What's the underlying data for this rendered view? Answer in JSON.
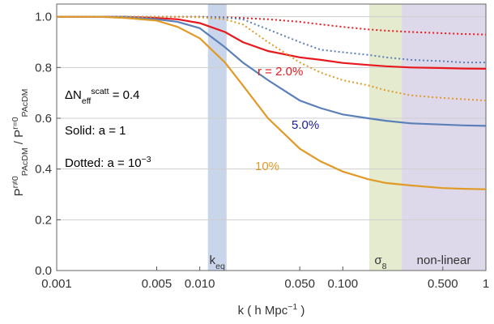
{
  "chart_data": {
    "type": "line",
    "x_scale": "log",
    "grid": true,
    "x_label": [
      {
        "text": "k ( h Mpc"
      },
      {
        "text": "−1",
        "shift": "super"
      },
      {
        "text": " )"
      }
    ],
    "y_label": [
      {
        "text": "P"
      },
      {
        "text": "r≠0",
        "shift": "super"
      },
      {
        "text": "PAcDM",
        "shift": "sub"
      },
      {
        "text": "  /  P"
      },
      {
        "text": "r=0",
        "shift": "super"
      },
      {
        "text": "PAcDM",
        "shift": "sub"
      }
    ],
    "xlim": [
      0.001,
      1
    ],
    "ylim": [
      0,
      1.05
    ],
    "xticks": [
      0.001,
      0.005,
      {
        "value": 0.01,
        "label": "0.010"
      },
      {
        "value": 0.05,
        "label": "0.050"
      },
      {
        "value": 0.1,
        "label": "0.100"
      },
      {
        "value": 0.5,
        "label": "0.500"
      },
      1
    ],
    "yticks": [
      {
        "value": 0,
        "label": "0.0"
      },
      0.2,
      0.4,
      0.6,
      0.8,
      {
        "value": 1,
        "label": "1.0"
      }
    ],
    "bands": [
      {
        "xlim": [
          0.0114,
          0.0154
        ],
        "color": "#c9d5ea",
        "label": [
          {
            "text": "k"
          },
          {
            "text": "eq",
            "shift": "sub"
          }
        ]
      },
      {
        "xlim": [
          0.153,
          0.258
        ],
        "color": "#e4ebcf",
        "label": [
          {
            "text": "σ"
          },
          {
            "text": "8",
            "shift": "sub"
          }
        ]
      },
      {
        "xlim": [
          0.258,
          1
        ],
        "color": "#ded9ea",
        "label": [
          {
            "text": "non-linear"
          }
        ]
      }
    ],
    "x": [
      0.001,
      0.002,
      0.003,
      0.005,
      0.007,
      0.01,
      0.015,
      0.02,
      0.03,
      0.05,
      0.07,
      0.1,
      0.15,
      0.2,
      0.3,
      0.5,
      0.7,
      1
    ],
    "series": [
      {
        "color": "#e8191e",
        "dashed": false,
        "values": [
          1,
          1,
          1,
          0.995,
          0.99,
          0.975,
          0.94,
          0.9,
          0.865,
          0.84,
          0.83,
          0.818,
          0.81,
          0.805,
          0.8,
          0.798,
          0.796,
          0.795
        ]
      },
      {
        "color": "#5b80b8",
        "dashed": false,
        "values": [
          1,
          1,
          1,
          0.99,
          0.98,
          0.955,
          0.88,
          0.82,
          0.75,
          0.67,
          0.64,
          0.615,
          0.6,
          0.59,
          0.58,
          0.575,
          0.572,
          0.57
        ]
      },
      {
        "color": "#e09a26",
        "dashed": false,
        "values": [
          1,
          1,
          0.995,
          0.985,
          0.96,
          0.915,
          0.82,
          0.73,
          0.6,
          0.48,
          0.43,
          0.39,
          0.36,
          0.345,
          0.335,
          0.325,
          0.322,
          0.32
        ]
      },
      {
        "color": "#e8191e",
        "dashed": true,
        "values": [
          1,
          1,
          1,
          1,
          1,
          1,
          0.998,
          0.995,
          0.99,
          0.98,
          0.97,
          0.96,
          0.95,
          0.945,
          0.94,
          0.935,
          0.932,
          0.93
        ]
      },
      {
        "color": "#5b80b8",
        "dashed": true,
        "values": [
          1,
          1,
          1,
          1,
          1,
          1,
          0.997,
          0.99,
          0.95,
          0.9,
          0.87,
          0.86,
          0.85,
          0.84,
          0.83,
          0.825,
          0.82,
          0.82
        ]
      },
      {
        "color": "#e09a26",
        "dashed": true,
        "values": [
          1,
          1,
          1,
          1,
          1,
          0.998,
          0.99,
          0.97,
          0.9,
          0.82,
          0.78,
          0.75,
          0.73,
          0.71,
          0.69,
          0.68,
          0.675,
          0.67
        ]
      }
    ],
    "annotations": [
      {
        "color": "#000000",
        "parts": [
          {
            "text": "ΔN"
          },
          {
            "text": "eff",
            "shift": "sub"
          },
          {
            "text": "scatt",
            "shift": "super"
          },
          {
            "text": " = 0.4"
          }
        ]
      },
      {
        "color": "#000000",
        "parts": [
          {
            "text": "Solid: a = 1"
          }
        ]
      },
      {
        "color": "#000000",
        "parts": [
          {
            "text": "Dotted: a = 10"
          },
          {
            "text": "−3",
            "shift": "super"
          }
        ]
      },
      {
        "color": "#e8191e",
        "parts": [
          {
            "text": "r = 2.0%"
          }
        ]
      },
      {
        "color": "#1a1aa0",
        "parts": [
          {
            "text": "5.0%"
          }
        ]
      },
      {
        "color": "#e09a26",
        "parts": [
          {
            "text": "10%"
          }
        ]
      }
    ]
  }
}
